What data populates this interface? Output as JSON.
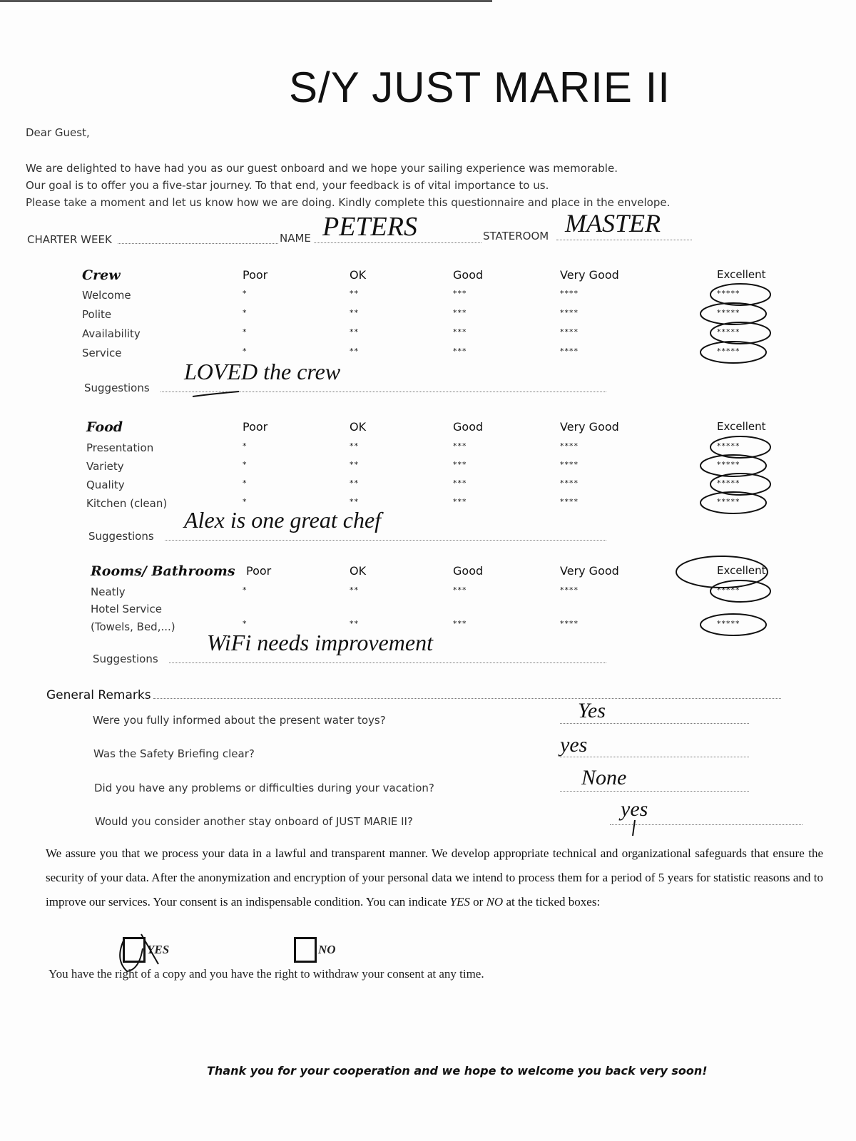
{
  "title": "S/Y JUST MARIE II",
  "greeting": "Dear Guest,",
  "intro": [
    "We are delighted to have had you as our guest onboard and we hope your sailing experience was memorable.",
    "Our goal is to offer you a five-star journey. To that end, your feedback is of vital importance to us.",
    "Please take a moment and let us know how we are doing. Kindly complete this questionnaire and place in the envelope."
  ],
  "fields": {
    "charter_week_label": "CHARTER WEEK",
    "charter_week_value": "",
    "name_label": "NAME",
    "name_value": "PETERS",
    "stateroom_label": "STATEROOM",
    "stateroom_value": "MASTER"
  },
  "columns": [
    "Poor",
    "OK",
    "Good",
    "Very Good",
    "Excellent"
  ],
  "star_marks": [
    "*",
    "**",
    "***",
    "****",
    "*****"
  ],
  "suggestions_label": "Suggestions",
  "sections": [
    {
      "name": "Crew",
      "rows": [
        "Welcome",
        "Polite",
        "Availability",
        "Service"
      ],
      "selected": [
        "Excellent",
        "Excellent",
        "Excellent",
        "Excellent"
      ],
      "suggestion": "LOVED the crew"
    },
    {
      "name": "Food",
      "rows": [
        "Presentation",
        "Variety",
        "Quality",
        "Kitchen (clean)"
      ],
      "selected": [
        "Excellent",
        "Excellent",
        "Excellent",
        "Excellent"
      ],
      "suggestion": "Alex is one great chef"
    },
    {
      "name": "Rooms/ Bathrooms",
      "rows": [
        "Neatly",
        "Hotel Service",
        "(Towels, Bed,...)"
      ],
      "selected": [
        "Excellent",
        "Excellent"
      ],
      "suggestion": "WiFi needs improvement"
    }
  ],
  "general": {
    "label": "General Remarks",
    "questions": [
      {
        "q": "Were you fully informed about the present water toys?",
        "a": "Yes"
      },
      {
        "q": "Was the Safety Briefing clear?",
        "a": "yes"
      },
      {
        "q": "Did you have any problems or difficulties during your vacation?",
        "a": "None"
      },
      {
        "q": "Would you consider another stay onboard of JUST MARIE II?",
        "a": "yes"
      }
    ]
  },
  "consent": {
    "text_1": "We assure you that we process your data in a lawful and transparent manner. We develop appropriate technical and organizational safeguards that ensure the security of your data. After the anonymization and encryption of your personal data we intend to process them for a period of 5 years for statistic reasons and to improve our services. Your consent is an indispensable condition. You can indicate",
    "yes_word": "YES",
    "or_word": " or ",
    "no_word": "NO",
    "text_2": " at the ticked boxes:",
    "yes_label": "YES",
    "no_label": "NO",
    "yes_checked": true,
    "no_checked": false,
    "rights": "You have the right of a copy and you have the right to withdraw your consent at any time."
  },
  "closing": "Thank you for your cooperation and we hope to welcome you back very soon!"
}
